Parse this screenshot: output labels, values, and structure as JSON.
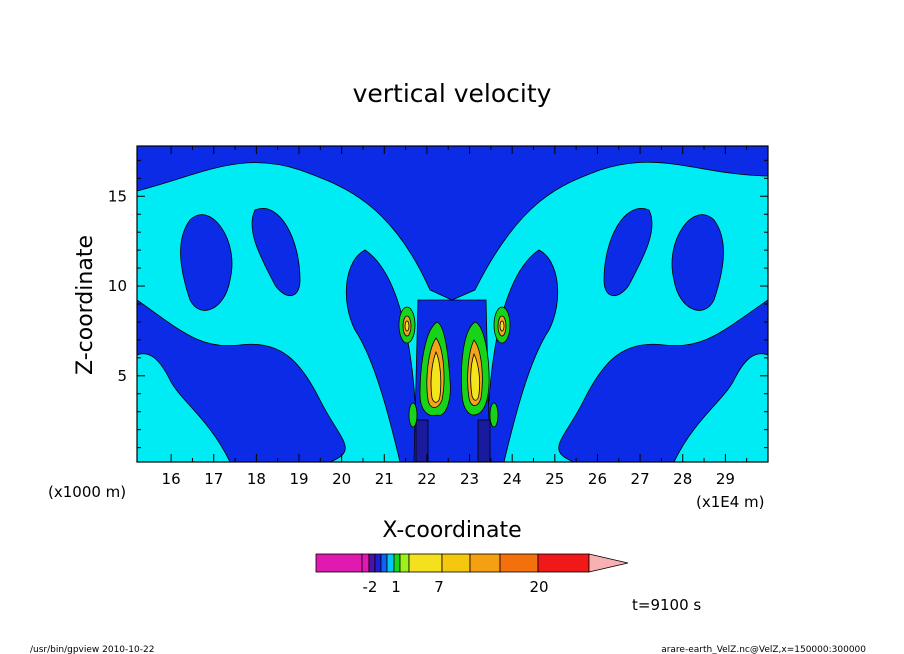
{
  "chart_data": {
    "type": "heatmap",
    "title": "vertical velocity",
    "xlabel": "X-coordinate",
    "ylabel": "Z-coordinate",
    "x_unit_left": "(x1000 m)",
    "x_unit_right": "(x1E4 m)",
    "xlim": [
      15.2,
      30.0
    ],
    "ylim": [
      0.2,
      17.8
    ],
    "x_ticks": [
      "16",
      "17",
      "18",
      "19",
      "20",
      "21",
      "22",
      "23",
      "24",
      "25",
      "26",
      "27",
      "28",
      "29"
    ],
    "y_ticks": [
      "5",
      "10",
      "15"
    ],
    "background_level_color": "#00ecf4",
    "colors": {
      "weak_down": "#0b2be6",
      "strong_down": "#1a1a9c",
      "green": "#18d418",
      "orange": "#f6a21c",
      "yellow": "#f4e61c"
    },
    "colorbar": {
      "colors": [
        "#e01ab0",
        "#e01ab0",
        "#4a14a8",
        "#1e1ed6",
        "#0c64f0",
        "#00c8f0",
        "#1ad41a",
        "#9ef01a",
        "#f4e01c",
        "#f4c80e",
        "#f4a010",
        "#f4700c",
        "#f01818",
        "#f88078"
      ],
      "labels": [
        "-2",
        "1",
        "7",
        "20"
      ],
      "extend_color": "#f8b0b0"
    },
    "time_label": "t=9100 s",
    "footer_left": "/usr/bin/gpview   2010-10-22",
    "footer_right": "arare-earth_VelZ.nc@VelZ,x=150000:300000"
  }
}
